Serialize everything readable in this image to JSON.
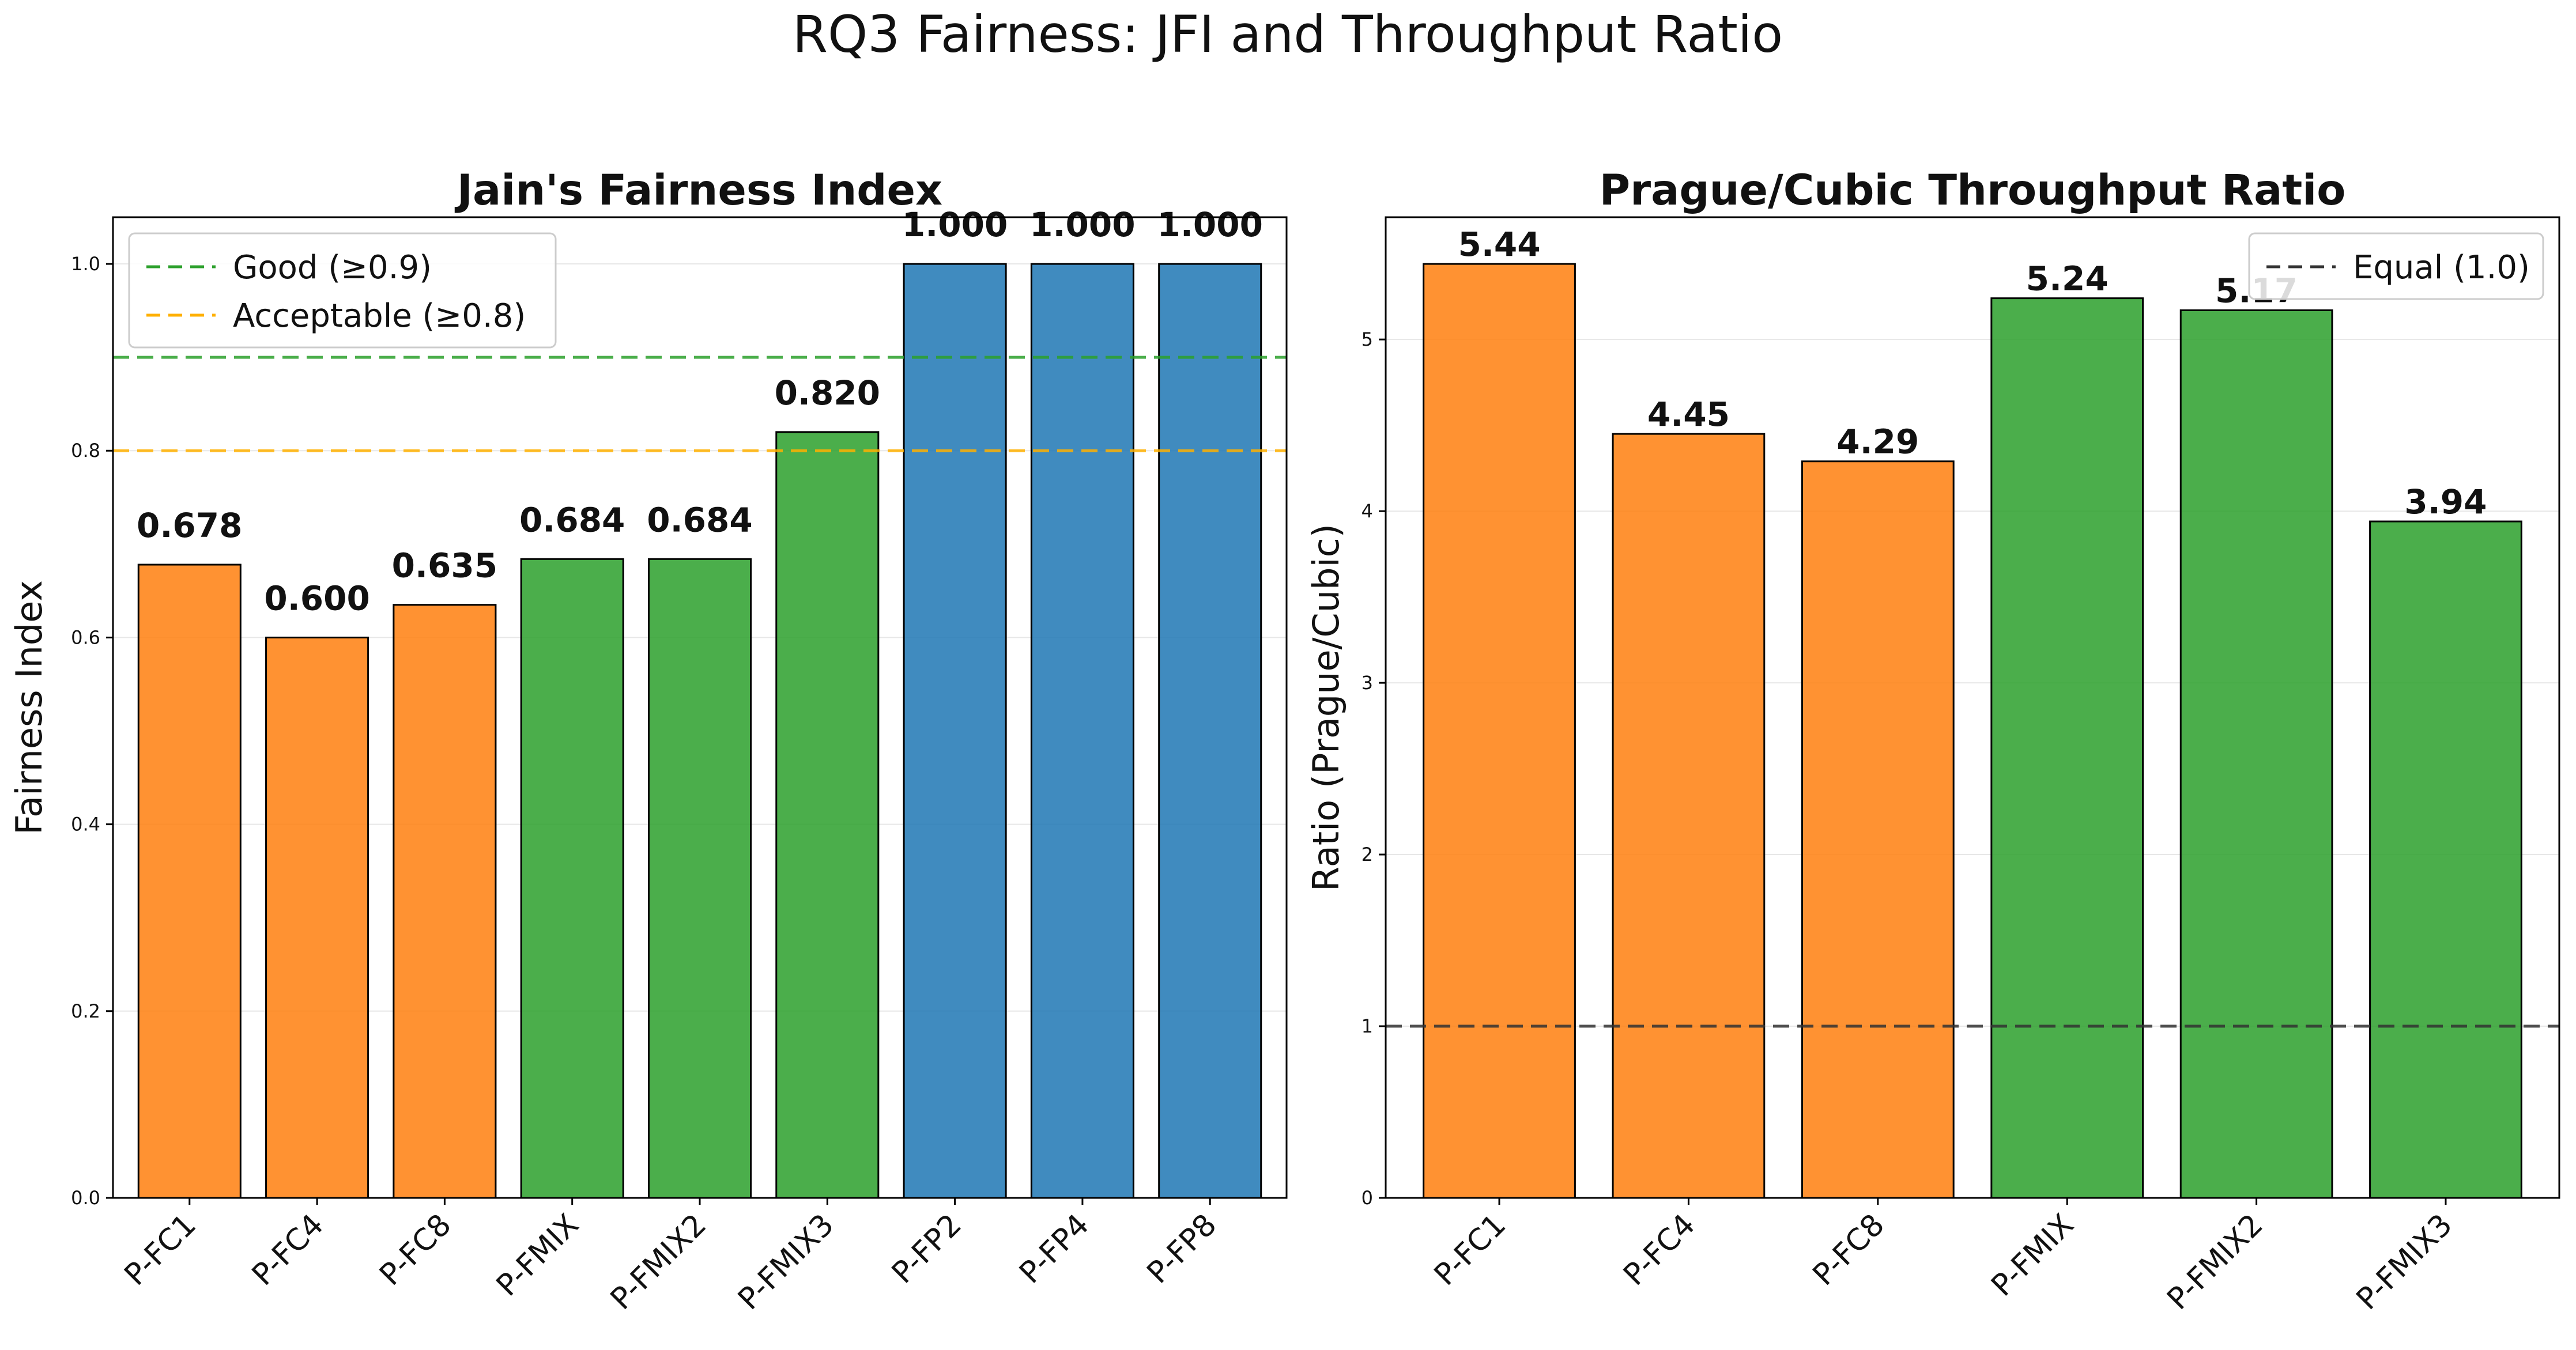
{
  "figure_title": "RQ3 Fairness: JFI and Throughput Ratio",
  "colors": {
    "cubic": "#ff7f0e",
    "mix": "#2ca02c",
    "prague": "#1f77b4",
    "good": "#2ca02c",
    "acceptable": "#ffb000",
    "equal": "#333333"
  },
  "chart_data": [
    {
      "type": "bar",
      "title": "Jain's Fairness Index",
      "xlabel": "",
      "ylabel": "Fairness Index",
      "ylim": [
        0,
        1.05
      ],
      "yticks": [
        "0.0",
        "0.2",
        "0.4",
        "0.6",
        "0.8",
        "1.0"
      ],
      "categories": [
        "P-FC1",
        "P-FC4",
        "P-FC8",
        "P-FMIX",
        "P-FMIX2",
        "P-FMIX3",
        "P-FP2",
        "P-FP4",
        "P-FP8"
      ],
      "values": [
        0.678,
        0.6,
        0.635,
        0.684,
        0.684,
        0.82,
        1.0,
        1.0,
        1.0
      ],
      "value_labels": [
        "0.678",
        "0.600",
        "0.635",
        "0.684",
        "0.684",
        "0.820",
        "1.000",
        "1.000",
        "1.000"
      ],
      "bar_colors": [
        "#ff7f0e",
        "#ff7f0e",
        "#ff7f0e",
        "#2ca02c",
        "#2ca02c",
        "#2ca02c",
        "#1f77b4",
        "#1f77b4",
        "#1f77b4"
      ],
      "reference_lines": [
        {
          "label": "Good (≥0.9)",
          "value": 0.9,
          "color": "#2ca02c"
        },
        {
          "label": "Acceptable (≥0.8)",
          "value": 0.8,
          "color": "#ffb000"
        }
      ],
      "legend_position": "upper left",
      "grid": "y"
    },
    {
      "type": "bar",
      "title": "Prague/Cubic Throughput Ratio",
      "xlabel": "",
      "ylabel": "Ratio (Prague/Cubic)",
      "ylim": [
        0,
        5.712
      ],
      "yticks": [
        "0",
        "1",
        "2",
        "3",
        "4",
        "5"
      ],
      "categories": [
        "P-FC1",
        "P-FC4",
        "P-FC8",
        "P-FMIX",
        "P-FMIX2",
        "P-FMIX3"
      ],
      "values": [
        5.44,
        4.45,
        4.29,
        5.24,
        5.17,
        3.94
      ],
      "value_labels": [
        "5.44",
        "4.45",
        "4.29",
        "5.24",
        "5.17",
        "3.94"
      ],
      "bar_colors": [
        "#ff7f0e",
        "#ff7f0e",
        "#ff7f0e",
        "#2ca02c",
        "#2ca02c",
        "#2ca02c"
      ],
      "reference_lines": [
        {
          "label": "Equal (1.0)",
          "value": 1.0,
          "color": "#333333"
        }
      ],
      "legend_position": "upper right",
      "grid": "y"
    }
  ]
}
